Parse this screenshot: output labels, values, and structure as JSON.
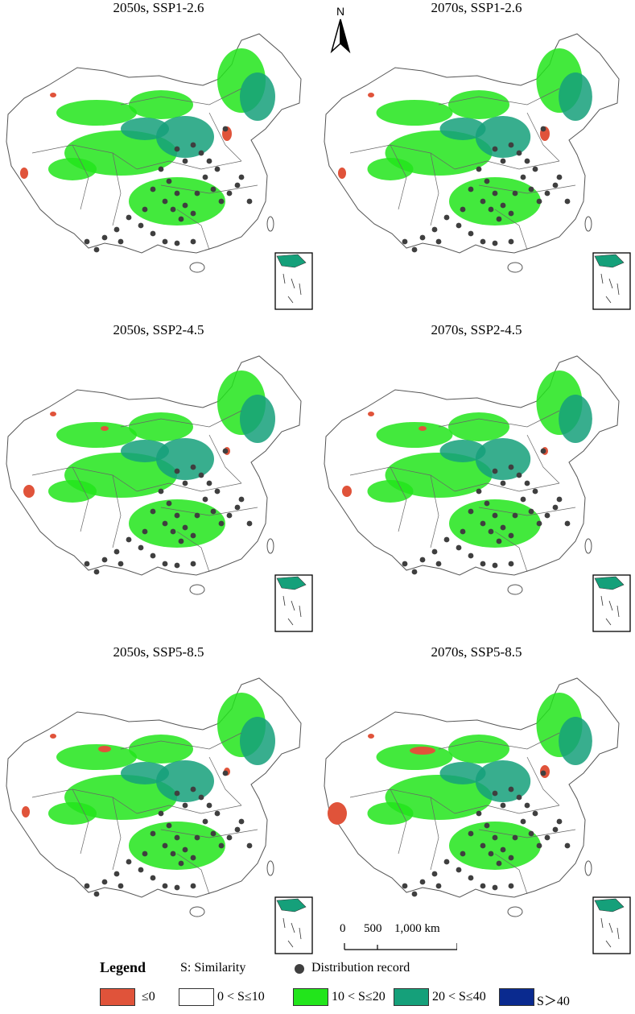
{
  "panels": [
    {
      "title": "2050s, SSP1-2.6"
    },
    {
      "title": "2070s, SSP1-2.6"
    },
    {
      "title": "2050s, SSP2-4.5"
    },
    {
      "title": "2070s, SSP2-4.5"
    },
    {
      "title": "2050s, SSP5-8.5"
    },
    {
      "title": "2070s, SSP5-8.5"
    }
  ],
  "north_arrow": {
    "label": "N"
  },
  "scale_bar": {
    "labels": [
      "0",
      "500",
      "1,000 km"
    ]
  },
  "legend": {
    "title": "Legend",
    "similarity_label": "S: Similarity",
    "distribution_label": "Distribution record",
    "classes": [
      {
        "label": "≤0",
        "color": "#e0533a"
      },
      {
        "label": "0 < S≤10",
        "color": "#ffffff"
      },
      {
        "label": "10 < S≤20",
        "color": "#22e51b"
      },
      {
        "label": "20 < S≤40",
        "color": "#15a07a"
      },
      {
        "label": "S＞40",
        "color": "#0a2a8f"
      }
    ]
  },
  "colors": {
    "record": "#3f3f3f",
    "boundary": "#555555"
  }
}
